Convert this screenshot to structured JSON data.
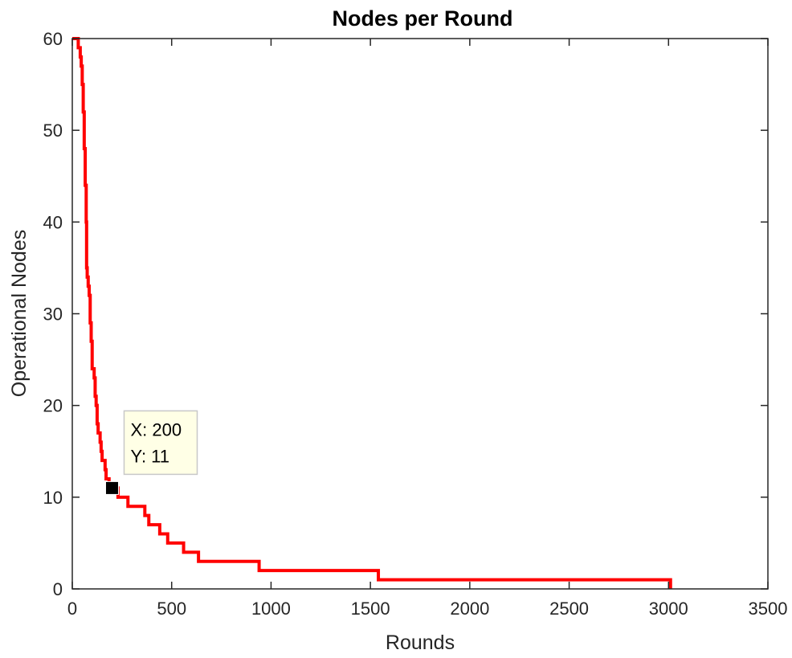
{
  "chart_data": {
    "type": "line",
    "title": "Nodes per Round",
    "xlabel": "Rounds",
    "ylabel": "Operational Nodes",
    "xlim": [
      0,
      3500
    ],
    "ylim": [
      0,
      60
    ],
    "xticks": [
      0,
      500,
      1000,
      1500,
      2000,
      2500,
      3000,
      3500
    ],
    "yticks": [
      0,
      10,
      20,
      30,
      40,
      50,
      60
    ],
    "grid": false,
    "step": true,
    "series": [
      {
        "color": "#ff0000",
        "x": [
          0,
          20,
          30,
          40,
          45,
          50,
          55,
          60,
          65,
          70,
          72,
          75,
          80,
          85,
          90,
          95,
          100,
          105,
          110,
          115,
          120,
          125,
          130,
          135,
          140,
          145,
          150,
          155,
          160,
          165,
          170,
          175,
          180,
          185,
          190,
          195,
          200,
          230,
          280,
          365,
          385,
          440,
          480,
          560,
          635,
          940,
          1540,
          3010
        ],
        "y": [
          60,
          60,
          59,
          58,
          57,
          55,
          52,
          48,
          44,
          40,
          35,
          34,
          33,
          32,
          29,
          27,
          24,
          24,
          23,
          21,
          20,
          18,
          17,
          17,
          16,
          15,
          14,
          14,
          14,
          13,
          12,
          12,
          12,
          11,
          11,
          11,
          11,
          10,
          9,
          8,
          7,
          6,
          5,
          4,
          3,
          2,
          1,
          0
        ]
      }
    ],
    "annotations": [
      {
        "type": "datatip",
        "x": 200,
        "y": 11,
        "line1": "X: 200",
        "line2": "Y: 11",
        "box_fill": "#ffffe6",
        "marker_color": "#000000"
      }
    ]
  }
}
